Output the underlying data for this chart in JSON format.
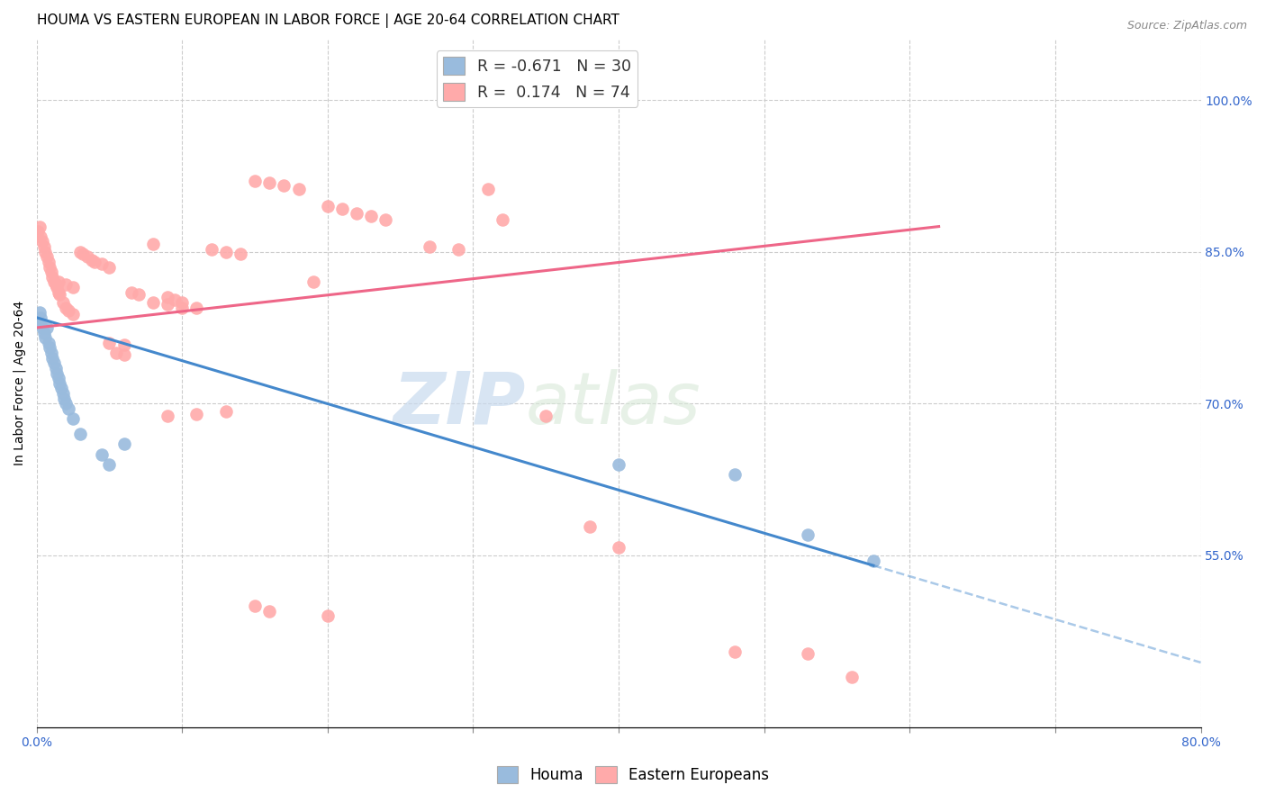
{
  "title": "HOUMA VS EASTERN EUROPEAN IN LABOR FORCE | AGE 20-64 CORRELATION CHART",
  "source": "Source: ZipAtlas.com",
  "ylabel": "In Labor Force | Age 20-64",
  "xlim": [
    0.0,
    0.8
  ],
  "ylim": [
    0.38,
    1.06
  ],
  "xticks": [
    0.0,
    0.1,
    0.2,
    0.3,
    0.4,
    0.5,
    0.6,
    0.7,
    0.8
  ],
  "yticks_right": [
    0.55,
    0.7,
    0.85,
    1.0
  ],
  "ytick_labels_right": [
    "55.0%",
    "70.0%",
    "85.0%",
    "100.0%"
  ],
  "blue_color": "#99BBDD",
  "pink_color": "#FFAAAA",
  "blue_trend_color": "#4488CC",
  "pink_trend_color": "#EE6688",
  "watermark_zip": "ZIP",
  "watermark_atlas": "atlas",
  "houma_x": [
    0.001,
    0.002,
    0.003,
    0.004,
    0.005,
    0.006,
    0.007,
    0.008,
    0.009,
    0.01,
    0.011,
    0.012,
    0.013,
    0.014,
    0.015,
    0.016,
    0.017,
    0.018,
    0.019,
    0.02,
    0.022,
    0.025,
    0.03,
    0.045,
    0.05,
    0.06,
    0.4,
    0.48,
    0.53,
    0.575
  ],
  "houma_y": [
    0.78,
    0.79,
    0.785,
    0.775,
    0.77,
    0.765,
    0.775,
    0.76,
    0.755,
    0.75,
    0.745,
    0.74,
    0.735,
    0.73,
    0.725,
    0.72,
    0.715,
    0.71,
    0.705,
    0.7,
    0.695,
    0.685,
    0.67,
    0.65,
    0.64,
    0.66,
    0.64,
    0.63,
    0.57,
    0.545
  ],
  "eastern_x": [
    0.001,
    0.002,
    0.003,
    0.004,
    0.005,
    0.006,
    0.007,
    0.008,
    0.009,
    0.01,
    0.011,
    0.012,
    0.013,
    0.014,
    0.015,
    0.016,
    0.018,
    0.02,
    0.022,
    0.025,
    0.03,
    0.032,
    0.035,
    0.038,
    0.04,
    0.045,
    0.05,
    0.055,
    0.06,
    0.065,
    0.07,
    0.08,
    0.09,
    0.095,
    0.1,
    0.11,
    0.12,
    0.13,
    0.14,
    0.15,
    0.16,
    0.17,
    0.18,
    0.19,
    0.2,
    0.21,
    0.22,
    0.23,
    0.24,
    0.27,
    0.29,
    0.31,
    0.32,
    0.35,
    0.38,
    0.4,
    0.09,
    0.11,
    0.13,
    0.015,
    0.02,
    0.025,
    0.08,
    0.09,
    0.1,
    0.05,
    0.06,
    0.15,
    0.16,
    0.2,
    0.48,
    0.53,
    0.56
  ],
  "eastern_y": [
    0.87,
    0.875,
    0.865,
    0.86,
    0.855,
    0.85,
    0.845,
    0.84,
    0.835,
    0.83,
    0.825,
    0.82,
    0.818,
    0.815,
    0.81,
    0.808,
    0.8,
    0.795,
    0.792,
    0.788,
    0.85,
    0.848,
    0.845,
    0.842,
    0.84,
    0.838,
    0.835,
    0.75,
    0.748,
    0.81,
    0.808,
    0.858,
    0.805,
    0.803,
    0.8,
    0.795,
    0.852,
    0.85,
    0.848,
    0.92,
    0.918,
    0.916,
    0.912,
    0.82,
    0.895,
    0.892,
    0.888,
    0.885,
    0.882,
    0.855,
    0.852,
    0.912,
    0.882,
    0.688,
    0.578,
    0.558,
    0.688,
    0.69,
    0.692,
    0.82,
    0.818,
    0.815,
    0.8,
    0.798,
    0.795,
    0.76,
    0.758,
    0.5,
    0.495,
    0.49,
    0.455,
    0.453,
    0.43
  ],
  "title_fontsize": 11,
  "axis_label_fontsize": 10,
  "tick_fontsize": 10,
  "legend_fontsize": 12.5
}
